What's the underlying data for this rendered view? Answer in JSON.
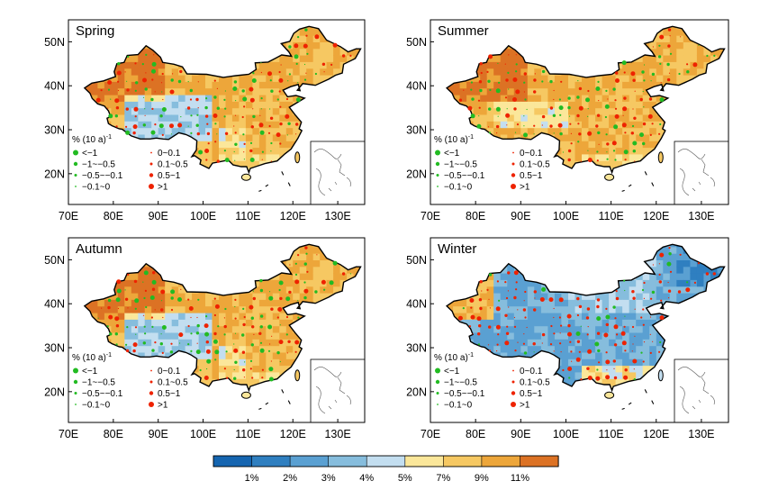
{
  "panels": [
    {
      "title": "Spring",
      "scheme": "mixed"
    },
    {
      "title": "Summer",
      "scheme": "warm"
    },
    {
      "title": "Autumn",
      "scheme": "mixed"
    },
    {
      "title": "Winter",
      "scheme": "cool"
    }
  ],
  "x_ticks": [
    "70E",
    "80E",
    "90E",
    "100E",
    "110E",
    "120E",
    "130E"
  ],
  "y_ticks": [
    "50N",
    "40N",
    "30N",
    "20N"
  ],
  "legend": {
    "unit_prefix": "% (10 a)",
    "unit_sup": "-1",
    "negative": [
      "<−1",
      "−1~−0.5",
      "−0.5~−0.1",
      "−0.1~0"
    ],
    "positive": [
      "0~0.1",
      "0.1~0.5",
      "0.5~1",
      ">1"
    ],
    "negative_color": "#22bb22",
    "positive_color": "#ee2200"
  },
  "colorbar": {
    "labels": [
      "1%",
      "2%",
      "3%",
      "4%",
      "5%",
      "7%",
      "9%",
      "11%"
    ],
    "colors": [
      "#1565b0",
      "#2f7fc0",
      "#5aa0d2",
      "#86bddd",
      "#c3def0",
      "#fbe79a",
      "#f6c862",
      "#eda63a",
      "#dc7224"
    ]
  }
}
